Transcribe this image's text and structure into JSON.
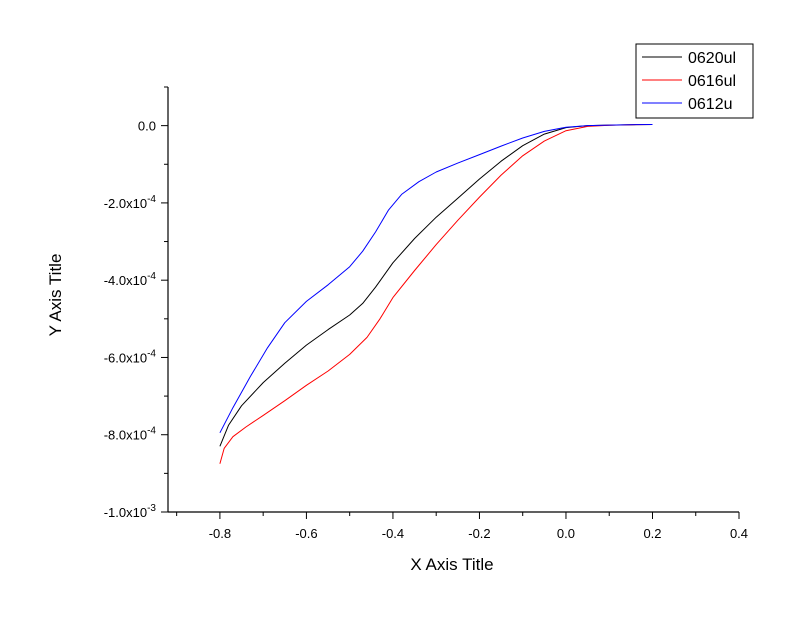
{
  "chart_data": {
    "type": "line",
    "xlabel": "X Axis Title",
    "ylabel": "Y Axis Title",
    "xlim": [
      -0.92,
      0.4
    ],
    "ylim": [
      -0.001,
      0.0001
    ],
    "x_ticks": [
      {
        "value": -0.8,
        "label": "-0.8"
      },
      {
        "value": -0.6,
        "label": "-0.6"
      },
      {
        "value": -0.4,
        "label": "-0.4"
      },
      {
        "value": -0.2,
        "label": "-0.2"
      },
      {
        "value": 0.0,
        "label": "0.0"
      },
      {
        "value": 0.2,
        "label": "0.2"
      },
      {
        "value": 0.4,
        "label": "0.4"
      }
    ],
    "y_ticks": [
      {
        "value": 0.0,
        "mantissa": "0.0",
        "exponent": ""
      },
      {
        "value": -0.0002,
        "mantissa": "-2.0x10",
        "exponent": "-4"
      },
      {
        "value": -0.0004,
        "mantissa": "-4.0x10",
        "exponent": "-4"
      },
      {
        "value": -0.0006,
        "mantissa": "-6.0x10",
        "exponent": "-4"
      },
      {
        "value": -0.0008,
        "mantissa": "-8.0x10",
        "exponent": "-4"
      },
      {
        "value": -0.001,
        "mantissa": "-1.0x10",
        "exponent": "-3"
      }
    ],
    "grid": false,
    "legend_position": "top-right",
    "series": [
      {
        "name": "0620ul",
        "color": "#000000",
        "points": [
          [
            -0.8,
            -0.00083
          ],
          [
            -0.78,
            -0.000775
          ],
          [
            -0.75,
            -0.000725
          ],
          [
            -0.7,
            -0.000665
          ],
          [
            -0.65,
            -0.000615
          ],
          [
            -0.6,
            -0.000568
          ],
          [
            -0.55,
            -0.000528
          ],
          [
            -0.5,
            -0.00049
          ],
          [
            -0.47,
            -0.00046
          ],
          [
            -0.44,
            -0.000418
          ],
          [
            -0.4,
            -0.000355
          ],
          [
            -0.35,
            -0.000292
          ],
          [
            -0.3,
            -0.000237
          ],
          [
            -0.25,
            -0.000188
          ],
          [
            -0.2,
            -0.000138
          ],
          [
            -0.15,
            -9.2e-05
          ],
          [
            -0.1,
            -5.2e-05
          ],
          [
            -0.05,
            -2.2e-05
          ],
          [
            0.0,
            -5e-06
          ],
          [
            0.05,
            0.0
          ],
          [
            0.1,
            1.5e-06
          ],
          [
            0.15,
            2.5e-06
          ],
          [
            0.2,
            3e-06
          ]
        ]
      },
      {
        "name": "0616ul",
        "color": "#ff0000",
        "points": [
          [
            -0.8,
            -0.000875
          ],
          [
            -0.79,
            -0.000835
          ],
          [
            -0.77,
            -0.000805
          ],
          [
            -0.74,
            -0.00078
          ],
          [
            -0.7,
            -0.00075
          ],
          [
            -0.65,
            -0.000712
          ],
          [
            -0.6,
            -0.000672
          ],
          [
            -0.55,
            -0.000635
          ],
          [
            -0.5,
            -0.000592
          ],
          [
            -0.46,
            -0.000548
          ],
          [
            -0.43,
            -0.0005
          ],
          [
            -0.4,
            -0.000445
          ],
          [
            -0.35,
            -0.000375
          ],
          [
            -0.3,
            -0.000308
          ],
          [
            -0.25,
            -0.000245
          ],
          [
            -0.2,
            -0.000185
          ],
          [
            -0.15,
            -0.000128
          ],
          [
            -0.1,
            -7.8e-05
          ],
          [
            -0.05,
            -4e-05
          ],
          [
            0.0,
            -1.3e-05
          ],
          [
            0.05,
            -2e-06
          ],
          [
            0.1,
            1e-06
          ],
          [
            0.15,
            2.5e-06
          ],
          [
            0.2,
            3e-06
          ]
        ]
      },
      {
        "name": "0612u",
        "color": "#0000ff",
        "points": [
          [
            -0.8,
            -0.000795
          ],
          [
            -0.77,
            -0.00073
          ],
          [
            -0.73,
            -0.00065
          ],
          [
            -0.69,
            -0.000575
          ],
          [
            -0.65,
            -0.00051
          ],
          [
            -0.6,
            -0.000455
          ],
          [
            -0.55,
            -0.000412
          ],
          [
            -0.5,
            -0.000365
          ],
          [
            -0.47,
            -0.000325
          ],
          [
            -0.44,
            -0.000275
          ],
          [
            -0.41,
            -0.000218
          ],
          [
            -0.38,
            -0.000178
          ],
          [
            -0.34,
            -0.000145
          ],
          [
            -0.3,
            -0.00012
          ],
          [
            -0.25,
            -9.7e-05
          ],
          [
            -0.2,
            -7.5e-05
          ],
          [
            -0.15,
            -5.3e-05
          ],
          [
            -0.1,
            -3.2e-05
          ],
          [
            -0.05,
            -1.5e-05
          ],
          [
            0.0,
            -4e-06
          ],
          [
            0.05,
            0.0
          ],
          [
            0.1,
            1.5e-06
          ],
          [
            0.15,
            2.5e-06
          ],
          [
            0.2,
            3e-06
          ]
        ]
      }
    ]
  }
}
